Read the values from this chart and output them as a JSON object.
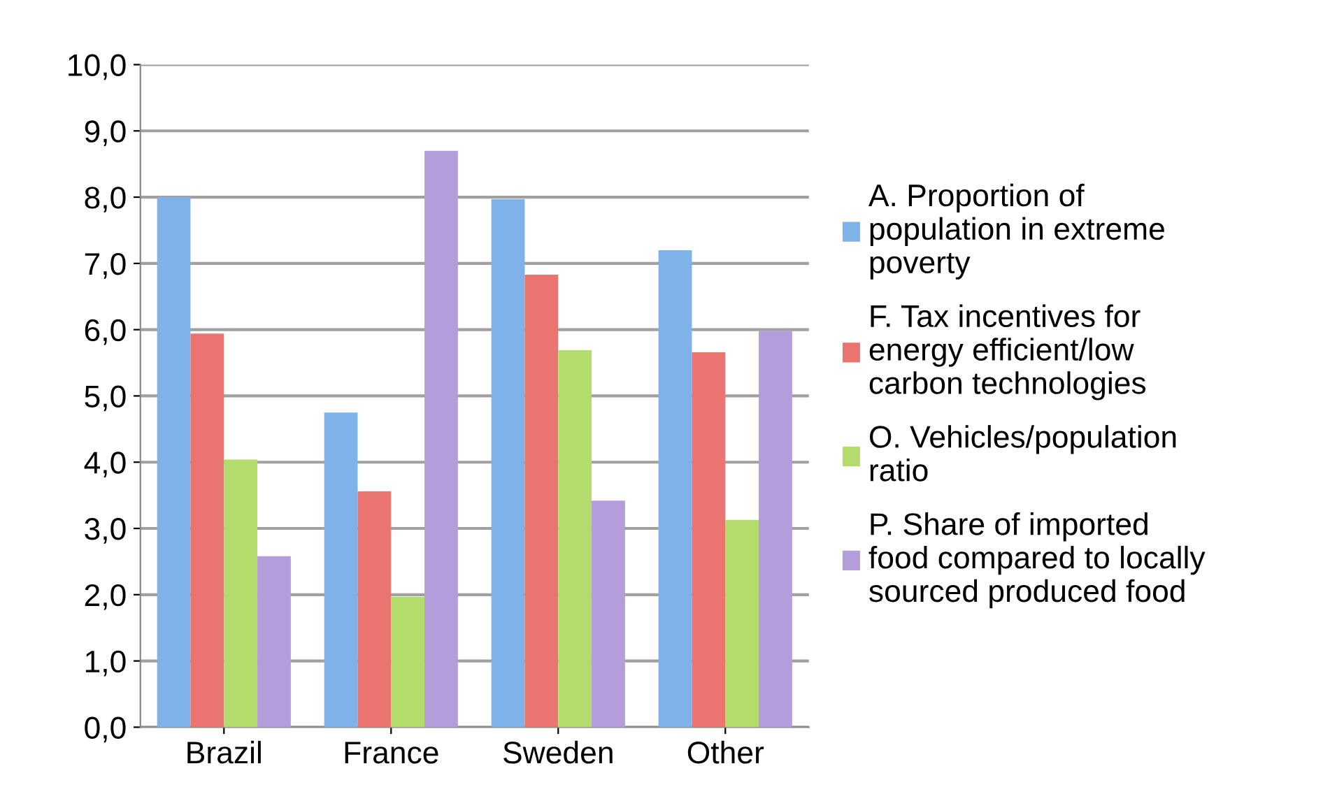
{
  "chart_data": {
    "type": "bar",
    "categories": [
      "Brazil",
      "France",
      "Sweden",
      "Other"
    ],
    "series": [
      {
        "name": "A. Proportion of\npopulation in extreme\npoverty",
        "color": "#7fb2e8",
        "values": [
          8.0,
          4.75,
          7.97,
          7.2
        ]
      },
      {
        "name": "F. Tax incentives for\nenergy efficient/low\ncarbon technologies",
        "color": "#ea7470",
        "values": [
          5.94,
          3.56,
          6.83,
          5.66
        ]
      },
      {
        "name": "O. Vehicles/population\nratio",
        "color": "#b4dc6c",
        "values": [
          4.04,
          1.97,
          5.69,
          3.13
        ]
      },
      {
        "name": "P. Share of imported\nfood compared to locally\nsourced produced food",
        "color": "#b39ddb",
        "values": [
          2.58,
          8.7,
          3.42,
          5.98
        ]
      }
    ],
    "ylim": [
      0,
      10
    ],
    "yticks": [
      {
        "value": 0,
        "label": "0,0"
      },
      {
        "value": 1,
        "label": "1,0"
      },
      {
        "value": 2,
        "label": "2,0"
      },
      {
        "value": 3,
        "label": "3,0"
      },
      {
        "value": 4,
        "label": "4,0"
      },
      {
        "value": 5,
        "label": "5,0"
      },
      {
        "value": 6,
        "label": "6,0"
      },
      {
        "value": 7,
        "label": "7,0"
      },
      {
        "value": 8,
        "label": "8,0"
      },
      {
        "value": 9,
        "label": "9,0"
      },
      {
        "value": 10,
        "label": "10,0"
      }
    ],
    "grid": "y",
    "legend": "right"
  }
}
